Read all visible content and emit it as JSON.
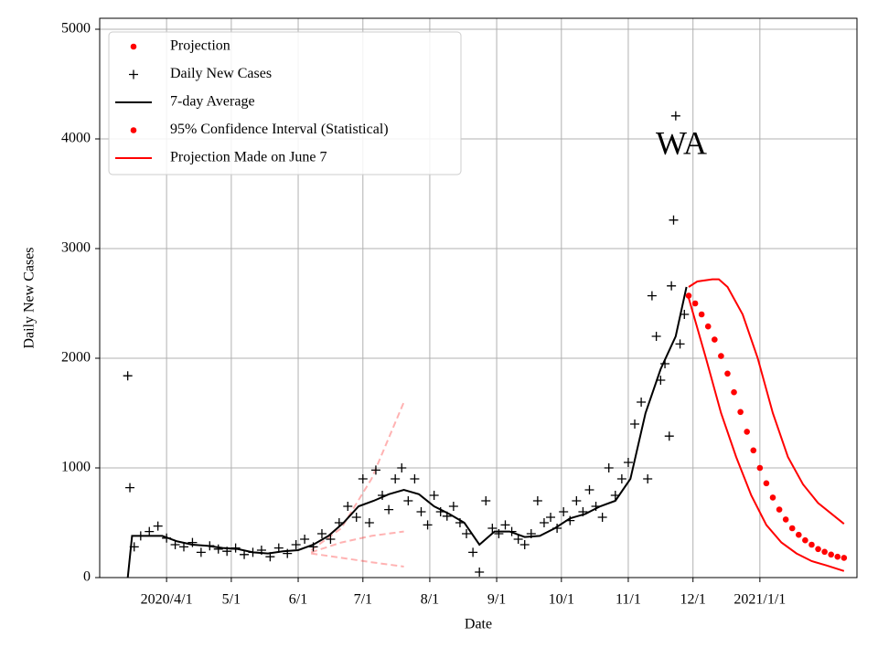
{
  "chart_data": {
    "type": "line",
    "annotation": "WA",
    "xlabel": "Date",
    "ylabel": "Daily New Cases",
    "xlim": [
      "2020-03-01",
      "2021-02-15"
    ],
    "ylim": [
      0,
      5100
    ],
    "xticks": [
      {
        "value": "2020-04-01",
        "label": "2020/4/1"
      },
      {
        "value": "2020-05-01",
        "label": "5/1"
      },
      {
        "value": "2020-06-01",
        "label": "6/1"
      },
      {
        "value": "2020-07-01",
        "label": "7/1"
      },
      {
        "value": "2020-08-01",
        "label": "8/1"
      },
      {
        "value": "2020-09-01",
        "label": "9/1"
      },
      {
        "value": "2020-10-01",
        "label": "10/1"
      },
      {
        "value": "2020-11-01",
        "label": "11/1"
      },
      {
        "value": "2020-12-01",
        "label": "12/1"
      },
      {
        "value": "2021-01-01",
        "label": "2021/1/1"
      }
    ],
    "yticks": [
      0,
      1000,
      2000,
      3000,
      4000,
      5000
    ],
    "grid": true,
    "legend": "upper left",
    "series": [
      {
        "name": "Projection",
        "color": "#ff0000",
        "marker": "dot",
        "x": [
          "2020-11-29",
          "2020-12-02",
          "2020-12-05",
          "2020-12-08",
          "2020-12-11",
          "2020-12-14",
          "2020-12-17",
          "2020-12-20",
          "2020-12-23",
          "2020-12-26",
          "2020-12-29",
          "2021-01-01",
          "2021-01-04",
          "2021-01-07",
          "2021-01-10",
          "2021-01-13",
          "2021-01-16",
          "2021-01-19",
          "2021-01-22",
          "2021-01-25",
          "2021-01-28",
          "2021-01-31",
          "2021-02-03",
          "2021-02-06",
          "2021-02-09"
        ],
        "values": [
          2570,
          2500,
          2400,
          2290,
          2170,
          2020,
          1860,
          1690,
          1510,
          1330,
          1160,
          1000,
          860,
          730,
          620,
          530,
          450,
          390,
          340,
          300,
          260,
          235,
          210,
          190,
          180
        ]
      },
      {
        "name": "Daily New Cases",
        "color": "#000000",
        "marker": "plus",
        "x": [
          "2020-03-14",
          "2020-03-15",
          "2020-03-17",
          "2020-03-20",
          "2020-03-24",
          "2020-03-28",
          "2020-04-01",
          "2020-04-05",
          "2020-04-09",
          "2020-04-13",
          "2020-04-17",
          "2020-04-21",
          "2020-04-25",
          "2020-04-29",
          "2020-05-03",
          "2020-05-07",
          "2020-05-11",
          "2020-05-15",
          "2020-05-19",
          "2020-05-23",
          "2020-05-27",
          "2020-05-31",
          "2020-06-04",
          "2020-06-08",
          "2020-06-12",
          "2020-06-16",
          "2020-06-20",
          "2020-06-24",
          "2020-06-28",
          "2020-07-01",
          "2020-07-04",
          "2020-07-07",
          "2020-07-10",
          "2020-07-13",
          "2020-07-16",
          "2020-07-19",
          "2020-07-22",
          "2020-07-25",
          "2020-07-28",
          "2020-07-31",
          "2020-08-03",
          "2020-08-06",
          "2020-08-09",
          "2020-08-12",
          "2020-08-15",
          "2020-08-18",
          "2020-08-21",
          "2020-08-24",
          "2020-08-27",
          "2020-08-30",
          "2020-09-02",
          "2020-09-05",
          "2020-09-08",
          "2020-09-11",
          "2020-09-14",
          "2020-09-17",
          "2020-09-20",
          "2020-09-23",
          "2020-09-26",
          "2020-09-29",
          "2020-10-02",
          "2020-10-05",
          "2020-10-08",
          "2020-10-11",
          "2020-10-14",
          "2020-10-17",
          "2020-10-20",
          "2020-10-23",
          "2020-10-26",
          "2020-10-29",
          "2020-11-01",
          "2020-11-04",
          "2020-11-07",
          "2020-11-10",
          "2020-11-12",
          "2020-11-14",
          "2020-11-16",
          "2020-11-18",
          "2020-11-20",
          "2020-11-21",
          "2020-11-22",
          "2020-11-23",
          "2020-11-25",
          "2020-11-27"
        ],
        "values": [
          1840,
          820,
          280,
          380,
          420,
          470,
          360,
          300,
          280,
          320,
          230,
          290,
          260,
          240,
          270,
          210,
          230,
          250,
          190,
          270,
          220,
          300,
          350,
          280,
          400,
          350,
          500,
          650,
          550,
          900,
          500,
          980,
          750,
          620,
          900,
          1000,
          700,
          900,
          600,
          480,
          750,
          600,
          560,
          650,
          500,
          400,
          230,
          50,
          700,
          450,
          400,
          480,
          420,
          350,
          300,
          400,
          700,
          500,
          550,
          450,
          600,
          520,
          700,
          600,
          800,
          650,
          550,
          1000,
          750,
          900,
          1050,
          1400,
          1600,
          900,
          2570,
          2200,
          1800,
          1950,
          1290,
          2660,
          3260,
          4210,
          2130,
          2400
        ]
      },
      {
        "name": "7-day Average",
        "color": "#000000",
        "line": "solid",
        "x": [
          "2020-03-14",
          "2020-03-16",
          "2020-03-23",
          "2020-03-30",
          "2020-04-06",
          "2020-04-13",
          "2020-04-20",
          "2020-04-27",
          "2020-05-04",
          "2020-05-11",
          "2020-05-18",
          "2020-05-25",
          "2020-06-01",
          "2020-06-08",
          "2020-06-15",
          "2020-06-22",
          "2020-06-29",
          "2020-07-06",
          "2020-07-13",
          "2020-07-20",
          "2020-07-27",
          "2020-08-03",
          "2020-08-10",
          "2020-08-17",
          "2020-08-24",
          "2020-08-31",
          "2020-09-07",
          "2020-09-14",
          "2020-09-21",
          "2020-09-28",
          "2020-10-05",
          "2020-10-12",
          "2020-10-19",
          "2020-10-26",
          "2020-11-02",
          "2020-11-09",
          "2020-11-16",
          "2020-11-23",
          "2020-11-28"
        ],
        "values": [
          0,
          380,
          380,
          380,
          330,
          300,
          290,
          270,
          260,
          230,
          220,
          240,
          250,
          300,
          380,
          500,
          650,
          700,
          760,
          800,
          760,
          650,
          580,
          500,
          300,
          420,
          420,
          370,
          380,
          450,
          540,
          580,
          650,
          700,
          900,
          1500,
          1900,
          2200,
          2650
        ]
      },
      {
        "name": "95% Confidence Interval (Statistical)",
        "color": "#ff0000",
        "line": "solid",
        "legend_marker": "dot",
        "parts": [
          {
            "x": [
              "2020-11-29",
              "2020-12-03",
              "2020-12-10",
              "2020-12-13",
              "2020-12-17",
              "2020-12-24",
              "2020-12-31",
              "2021-01-07",
              "2021-01-14",
              "2021-01-21",
              "2021-01-28",
              "2021-02-09"
            ],
            "values": [
              2650,
              2700,
              2720,
              2720,
              2650,
              2400,
              2000,
              1500,
              1100,
              850,
              680,
              490
            ]
          },
          {
            "x": [
              "2020-11-29",
              "2020-12-07",
              "2020-12-14",
              "2020-12-21",
              "2020-12-28",
              "2021-01-04",
              "2021-01-11",
              "2021-01-18",
              "2021-01-25",
              "2021-02-01",
              "2021-02-09"
            ],
            "values": [
              2550,
              2000,
              1500,
              1100,
              750,
              480,
              320,
              220,
              150,
              110,
              60
            ]
          }
        ]
      },
      {
        "name": "Projection Made on June 7",
        "color": "#ff0000",
        "line": "dashed",
        "opacity": 0.3,
        "parts": [
          {
            "x": [
              "2020-06-07",
              "2020-06-21",
              "2020-07-05",
              "2020-07-20"
            ],
            "values": [
              230,
              320,
              380,
              420
            ]
          },
          {
            "x": [
              "2020-06-07",
              "2020-06-21",
              "2020-07-05",
              "2020-07-20"
            ],
            "values": [
              250,
              450,
              900,
              1600
            ]
          },
          {
            "x": [
              "2020-06-07",
              "2020-06-21",
              "2020-07-05",
              "2020-07-20"
            ],
            "values": [
              220,
              180,
              140,
              100
            ]
          }
        ]
      }
    ]
  }
}
